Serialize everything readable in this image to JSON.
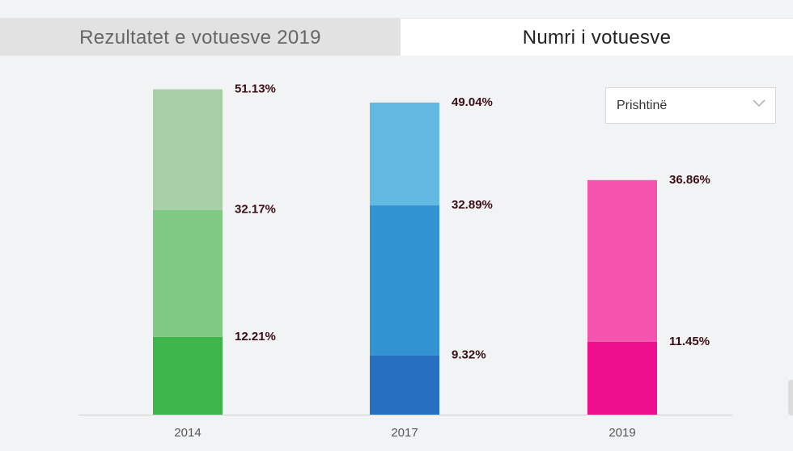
{
  "tabs": [
    {
      "label": "Rezultatet e votuesve 2019",
      "active": false
    },
    {
      "label": "Numri i votuesve",
      "active": true
    }
  ],
  "filter": {
    "selected": "Prishtinë",
    "icon": "chevron-down-icon"
  },
  "chart_data": {
    "type": "bar",
    "stacked": true,
    "categories": [
      "2014",
      "2017",
      "2019"
    ],
    "bars": [
      {
        "category": "2014",
        "segments": [
          {
            "value": 12.21,
            "label": "12.21%",
            "color": "#3db54a"
          },
          {
            "value": 32.17,
            "label": "32.17%",
            "color": "#80c984"
          },
          {
            "value": 51.13,
            "label": "51.13%",
            "color": "#a9cfa8"
          }
        ]
      },
      {
        "category": "2017",
        "segments": [
          {
            "value": 9.32,
            "label": "9.32%",
            "color": "#2670c0"
          },
          {
            "value": 32.89,
            "label": "32.89%",
            "color": "#3193d1"
          },
          {
            "value": 49.04,
            "label": "49.04%",
            "color": "#63b9e2"
          }
        ]
      },
      {
        "category": "2019",
        "segments": [
          {
            "value": 11.45,
            "label": "11.45%",
            "color": "#ee0f8d"
          },
          {
            "value": 36.86,
            "label": "36.86%",
            "color": "#f554ae"
          }
        ]
      }
    ],
    "title": "",
    "xlabel": "",
    "ylabel": "",
    "ylim": [
      0,
      55
    ],
    "grid": false,
    "legend": "none"
  }
}
